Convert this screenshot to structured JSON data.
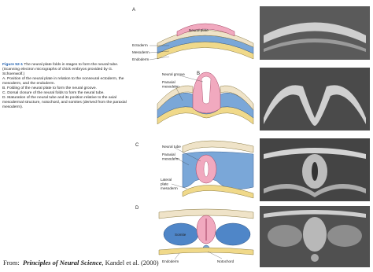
{
  "panels": [
    {
      "label": "A",
      "labels": [
        [
          "Neural plate"
        ],
        [
          "Ectoderm"
        ],
        [
          "Mesoderm"
        ],
        [
          "Endoderm"
        ]
      ]
    },
    {
      "label": "B",
      "labels": [
        [
          "Neural groove"
        ],
        [
          "Paraxial",
          "mesoderm"
        ]
      ]
    },
    {
      "label": "C",
      "labels": [
        [
          "Neural tube"
        ],
        [
          "Paraxial",
          "mesoderm"
        ],
        [
          "Lateral",
          "plate",
          "mesoderm"
        ]
      ]
    },
    {
      "label": "D",
      "labels": [
        [
          "Somite"
        ],
        [
          "Endoderm"
        ],
        [
          "Notochord"
        ]
      ]
    }
  ],
  "caption": {
    "figure_label": "Figure 52-1",
    "title": "The neural plate folds in stages to form the neural tube. (Scanning electron micrographs of chick embryos provided by G. Schoenwolf.)",
    "items": [
      "A. Position of the neural plate in relation to the nonneural ectoderm, the mesoderm, and the endoderm.",
      "B. Folding of the neural plate to form the neural groove.",
      "C. Dorsal closure of the neural folds to form the neural tube.",
      "D. Maturation of the neural tube and its position relative to the axial mesodermal structure, notochord, and somites (derived from the paraxial mesoderm)."
    ]
  },
  "source": {
    "prefix": "From:",
    "book": "Principles of Neural Science",
    "suffix": ", Kandel et al. (2000)"
  }
}
